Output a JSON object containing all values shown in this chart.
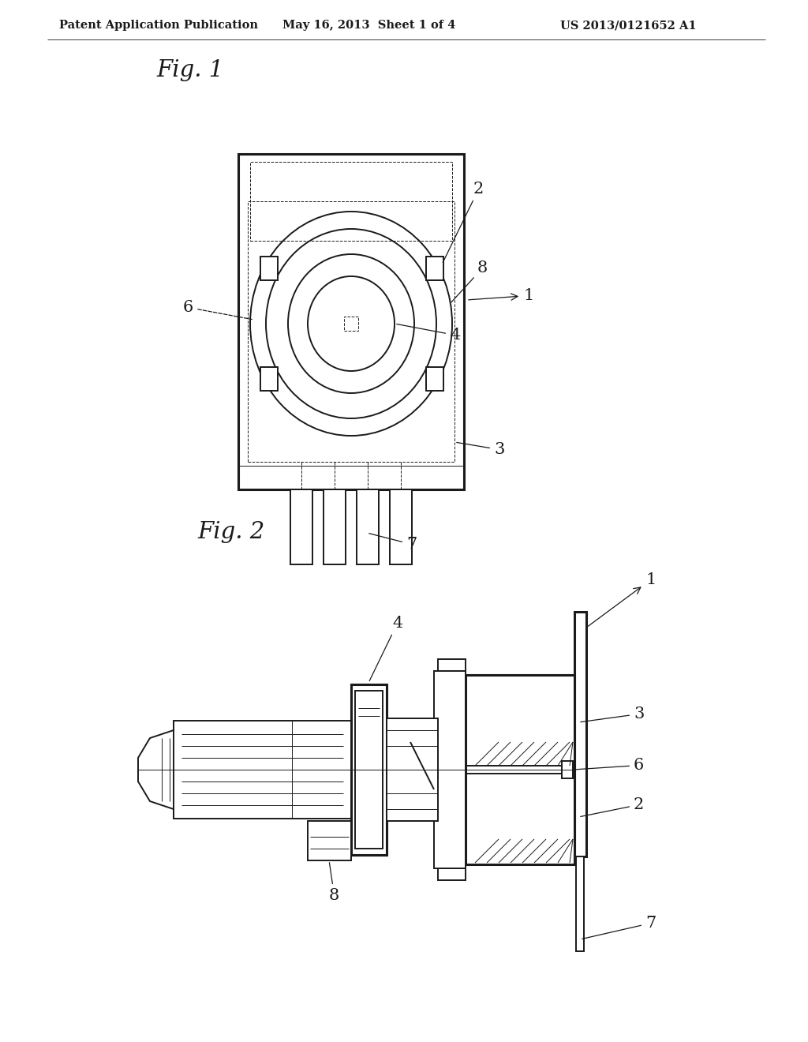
{
  "background_color": "#ffffff",
  "header_text": "Patent Application Publication",
  "header_date": "May 16, 2013  Sheet 1 of 4",
  "header_patent": "US 2013/0121652 A1",
  "fig1_label": "Fig. 1",
  "fig2_label": "Fig. 2",
  "line_color": "#1a1a1a",
  "lw_thick": 2.2,
  "lw_med": 1.4,
  "lw_thin": 0.7
}
